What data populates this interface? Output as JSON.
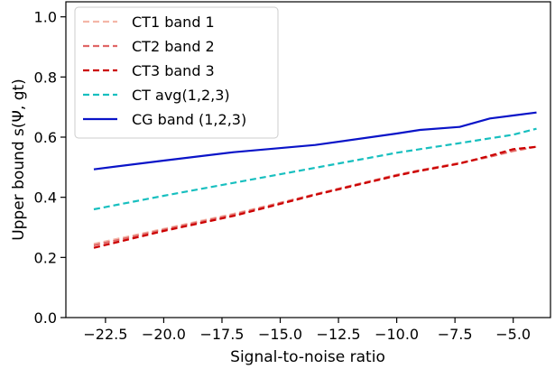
{
  "chart_data": {
    "type": "line",
    "xlabel": "Signal-to-noise ratio",
    "ylabel": "Upper bound s(Ψ, gt)",
    "xlim": [
      -24.2,
      -3.4
    ],
    "ylim": [
      0.0,
      1.05
    ],
    "xticks": [
      -22.5,
      -20.0,
      -17.5,
      -15.0,
      -12.5,
      -10.0,
      -7.5,
      -5.0
    ],
    "xtick_labels": [
      "−22.5",
      "−20.0",
      "−17.5",
      "−15.0",
      "−12.5",
      "−10.0",
      "−7.5",
      "−5.0"
    ],
    "yticks": [
      0.0,
      0.2,
      0.4,
      0.6,
      0.8,
      1.0
    ],
    "ytick_labels": [
      "0.0",
      "0.2",
      "0.4",
      "0.6",
      "0.8",
      "1.0"
    ],
    "grid": false,
    "legend_position": "top-left",
    "series": [
      {
        "name": "CT1 band 1",
        "color": "#f4b6a8",
        "style": "dashed",
        "x": [
          -23,
          -20,
          -17,
          -13.5,
          -10,
          -9,
          -7.3,
          -6,
          -5,
          -4
        ],
        "y": [
          0.245,
          0.295,
          0.345,
          0.41,
          0.475,
          0.49,
          0.515,
          0.535,
          0.553,
          0.568
        ]
      },
      {
        "name": "CT2 band 2",
        "color": "#e06666",
        "style": "dashed",
        "x": [
          -23,
          -20,
          -17,
          -13.5,
          -10,
          -9,
          -7.3,
          -6,
          -5,
          -4
        ],
        "y": [
          0.24,
          0.292,
          0.342,
          0.41,
          0.474,
          0.49,
          0.513,
          0.535,
          0.555,
          0.568
        ]
      },
      {
        "name": "CT3 band 3",
        "color": "#cc0000",
        "style": "dashed",
        "x": [
          -23,
          -20,
          -17,
          -13.5,
          -10,
          -9,
          -7.3,
          -6,
          -5,
          -4
        ],
        "y": [
          0.232,
          0.288,
          0.338,
          0.408,
          0.472,
          0.488,
          0.512,
          0.538,
          0.56,
          0.568
        ]
      },
      {
        "name": "CT avg(1,2,3)",
        "color": "#17bfbf",
        "style": "dashed",
        "x": [
          -23,
          -20,
          -17,
          -13.5,
          -10,
          -9,
          -7.3,
          -6,
          -5,
          -4
        ],
        "y": [
          0.36,
          0.405,
          0.448,
          0.498,
          0.548,
          0.56,
          0.58,
          0.596,
          0.608,
          0.628
        ]
      },
      {
        "name": "CG band (1,2,3)",
        "color": "#0a14c8",
        "style": "solid",
        "x": [
          -23,
          -20,
          -17,
          -13.5,
          -10,
          -9,
          -7.3,
          -6,
          -5,
          -4
        ],
        "y": [
          0.493,
          0.522,
          0.55,
          0.574,
          0.612,
          0.624,
          0.634,
          0.662,
          0.672,
          0.682
        ]
      }
    ]
  }
}
